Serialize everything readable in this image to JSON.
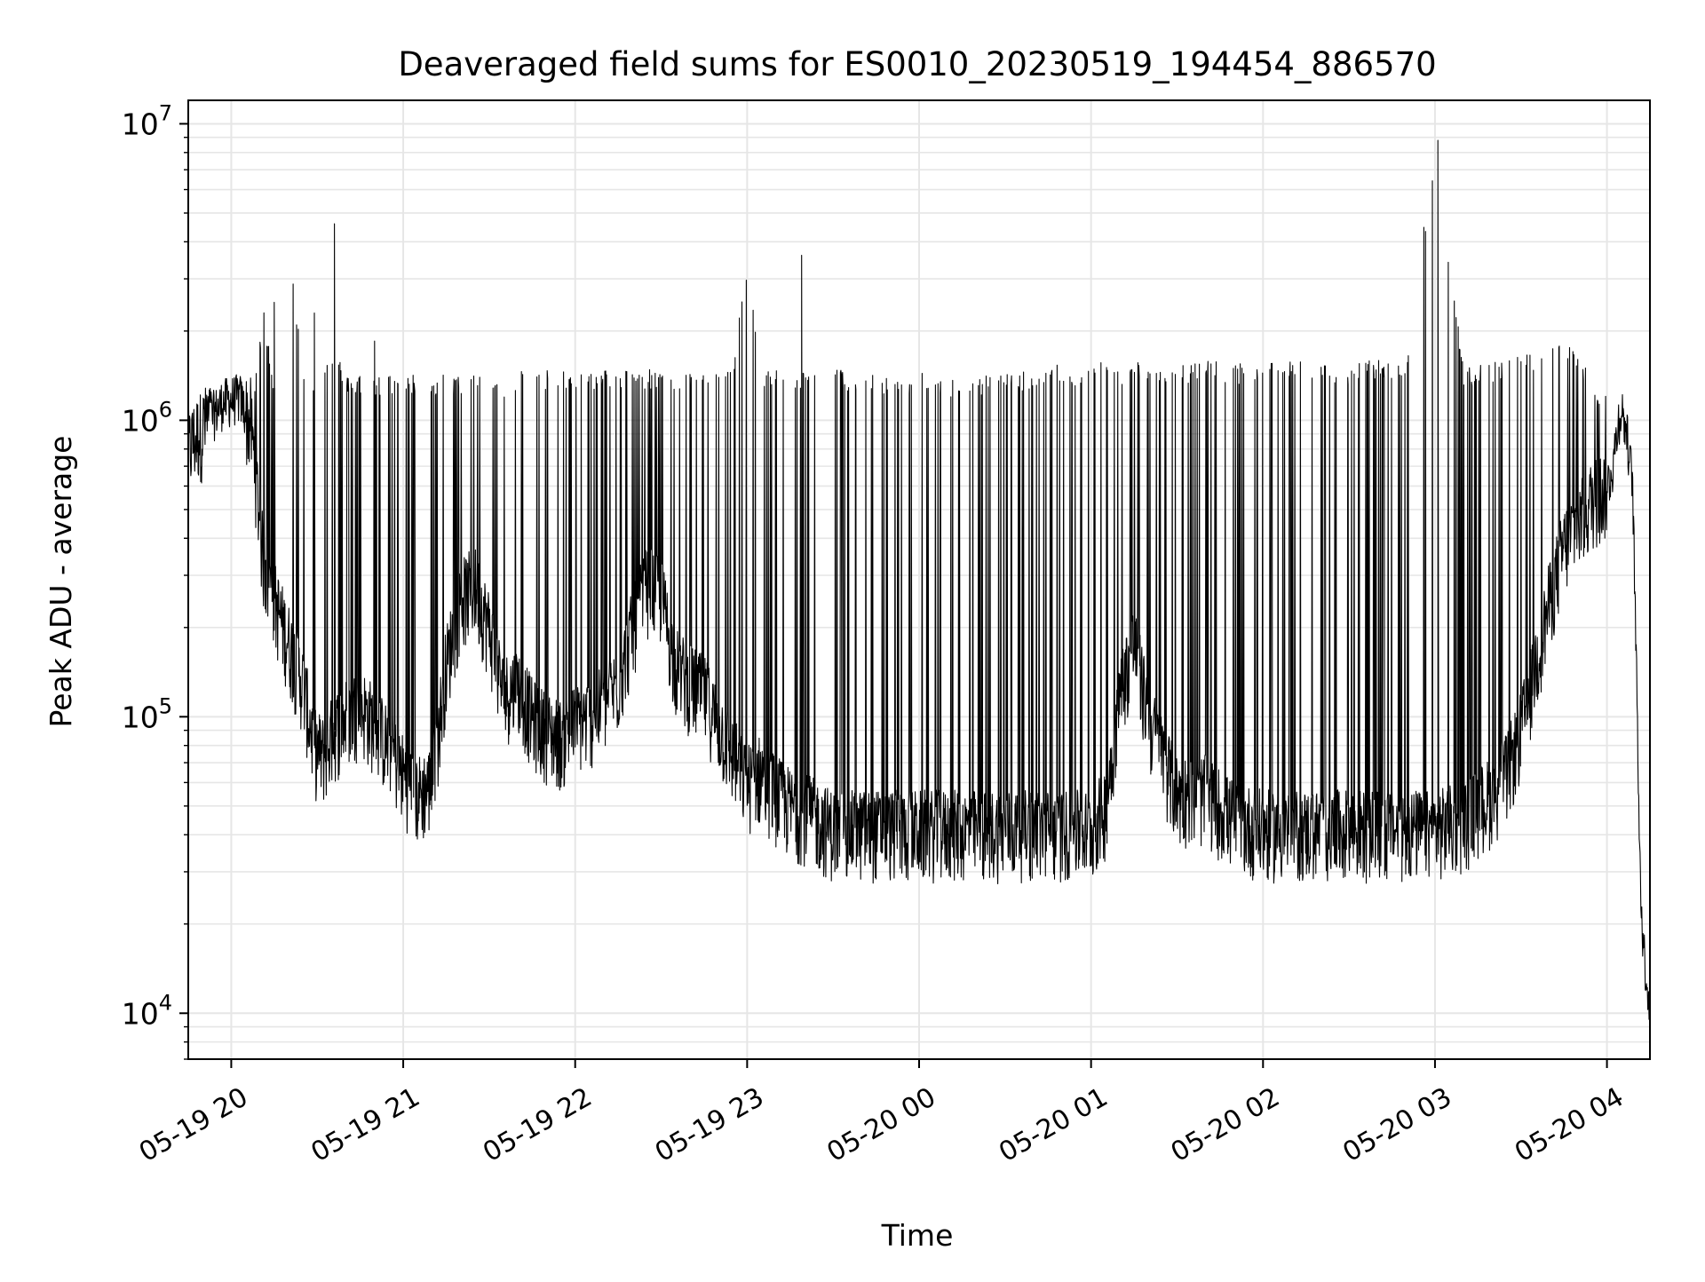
{
  "chart_data": {
    "type": "line",
    "title": "Deaveraged field sums for ES0010_20230519_194454_886570",
    "xlabel": "Time",
    "ylabel": "Peak ADU - average",
    "y_scale": "log",
    "ylim": [
      7000,
      12000000
    ],
    "xlim": [
      "2023-05-19 19:45",
      "2023-05-20 04:15"
    ],
    "grid": true,
    "x_ticks": [
      "05-19 20",
      "05-19 21",
      "05-19 22",
      "05-19 23",
      "05-20 00",
      "05-20 01",
      "05-20 02",
      "05-20 03",
      "05-20 04"
    ],
    "y_ticks": [
      {
        "value": 10000,
        "base": "10",
        "exp": "4"
      },
      {
        "value": 100000,
        "base": "10",
        "exp": "5"
      },
      {
        "value": 1000000,
        "base": "10",
        "exp": "6"
      },
      {
        "value": 10000000,
        "base": "10",
        "exp": "7"
      }
    ],
    "colors": {
      "line": "#000000",
      "grid": "#e6e6e6",
      "axis": "#000000"
    },
    "series": [
      {
        "x": [
          "2023-05-19 19:45",
          "2023-05-19 19:48",
          "2023-05-19 19:52",
          "2023-05-19 19:57",
          "2023-05-19 20:03",
          "2023-05-19 20:07",
          "2023-05-19 20:09",
          "2023-05-19 20:11",
          "2023-05-19 20:15",
          "2023-05-19 20:20",
          "2023-05-19 20:25",
          "2023-05-19 20:29",
          "2023-05-19 20:32",
          "2023-05-19 20:36",
          "2023-05-19 20:40",
          "2023-05-19 20:45",
          "2023-05-19 20:50",
          "2023-05-19 20:55",
          "2023-05-19 21:00",
          "2023-05-19 21:05",
          "2023-05-19 21:10",
          "2023-05-19 21:15",
          "2023-05-19 21:20",
          "2023-05-19 21:25",
          "2023-05-19 21:30",
          "2023-05-19 21:35",
          "2023-05-19 21:40",
          "2023-05-19 21:45",
          "2023-05-19 21:50",
          "2023-05-19 21:55",
          "2023-05-19 22:00",
          "2023-05-19 22:05",
          "2023-05-19 22:10",
          "2023-05-19 22:15",
          "2023-05-19 22:20",
          "2023-05-19 22:25",
          "2023-05-19 22:30",
          "2023-05-19 22:35",
          "2023-05-19 22:40",
          "2023-05-19 22:45",
          "2023-05-19 22:50",
          "2023-05-19 22:55",
          "2023-05-19 23:00",
          "2023-05-19 23:05",
          "2023-05-19 23:10",
          "2023-05-19 23:15",
          "2023-05-19 23:20",
          "2023-05-19 23:25",
          "2023-05-19 23:30",
          "2023-05-19 23:40",
          "2023-05-19 23:50",
          "2023-05-20 00:00",
          "2023-05-20 00:10",
          "2023-05-20 00:20",
          "2023-05-20 00:30",
          "2023-05-20 00:40",
          "2023-05-20 00:50",
          "2023-05-20 00:55",
          "2023-05-20 01:00",
          "2023-05-20 01:05",
          "2023-05-20 01:10",
          "2023-05-20 01:15",
          "2023-05-20 01:20",
          "2023-05-20 01:30",
          "2023-05-20 01:40",
          "2023-05-20 01:50",
          "2023-05-20 02:00",
          "2023-05-20 02:10",
          "2023-05-20 02:20",
          "2023-05-20 02:30",
          "2023-05-20 02:40",
          "2023-05-20 02:50",
          "2023-05-20 03:00",
          "2023-05-20 03:10",
          "2023-05-20 03:20",
          "2023-05-20 03:25",
          "2023-05-20 03:30",
          "2023-05-20 03:35",
          "2023-05-20 03:40",
          "2023-05-20 03:45",
          "2023-05-20 03:50",
          "2023-05-20 03:55",
          "2023-05-20 04:00",
          "2023-05-20 04:02",
          "2023-05-20 04:04",
          "2023-05-20 04:05",
          "2023-05-20 04:07",
          "2023-05-20 04:09",
          "2023-05-20 04:10",
          "2023-05-20 04:11",
          "2023-05-20 04:12",
          "2023-05-20 04:13",
          "2023-05-20 04:15"
        ],
        "baseline": [
          800000,
          900000,
          1000000,
          1150000,
          1200000,
          950000,
          600000,
          350000,
          250000,
          180000,
          130000,
          80000,
          75000,
          90000,
          100000,
          110000,
          95000,
          80000,
          65000,
          55000,
          60000,
          150000,
          250000,
          280000,
          200000,
          120000,
          130000,
          100000,
          90000,
          85000,
          95000,
          100000,
          110000,
          130000,
          200000,
          280000,
          260000,
          150000,
          130000,
          120000,
          95000,
          75000,
          60000,
          65000,
          55000,
          50000,
          48000,
          45000,
          42000,
          42000,
          42000,
          42000,
          42000,
          42000,
          42000,
          42000,
          42000,
          42000,
          42000,
          50000,
          120000,
          180000,
          100000,
          55000,
          55000,
          45000,
          42000,
          42000,
          42000,
          42000,
          42000,
          42000,
          42000,
          45000,
          55000,
          65000,
          90000,
          150000,
          250000,
          380000,
          450000,
          550000,
          600000,
          700000,
          1000000,
          1100000,
          900000,
          600000,
          200000,
          60000,
          22000,
          16000,
          10000
        ],
        "peaks": [
          1100000,
          1200000,
          1300000,
          1250000,
          1250000,
          1400000,
          1450000,
          2500000,
          1400000,
          4600000,
          1450000,
          1400000,
          1500000,
          1850000,
          1400000,
          1450000,
          1400000,
          1450000,
          1400000,
          1450000,
          1400000,
          1450000,
          1400000,
          1500000,
          1450000,
          1400000,
          1500000,
          1450000,
          1500000,
          1450000,
          1500000,
          1450000,
          1500000,
          1480000,
          1500000,
          1500000,
          1450000,
          1500000,
          1450000,
          1480000,
          1450000,
          1500000,
          3600000,
          1450000,
          1500000,
          1480000,
          1500000,
          1480000,
          1500000,
          1450000,
          1400000,
          1450000,
          1400000,
          1400000,
          1450000,
          1500000,
          1550000,
          1500000,
          1550000,
          1600000,
          1550000,
          1580000,
          1600000,
          1550000,
          1600000,
          1550000,
          1550000,
          1580000,
          1600000,
          1550000,
          1600000,
          1600000,
          8800000,
          1500000,
          1580000,
          1600000,
          1650000,
          1700000,
          1750000,
          1850000,
          1750000,
          1300000,
          1250000,
          1200000,
          1150000,
          1100000,
          900000,
          600000,
          200000,
          60000,
          22000,
          16000,
          10000
        ],
        "name": ""
      }
    ]
  }
}
